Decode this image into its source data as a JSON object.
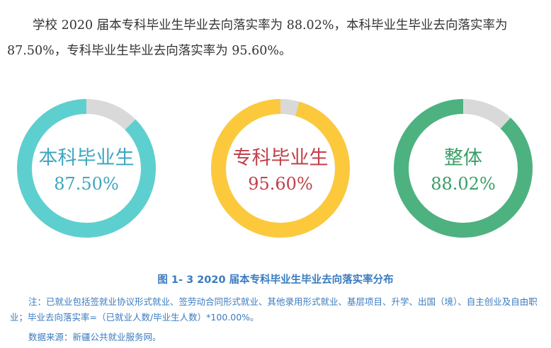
{
  "intro_text": "学校 2020 届本专科毕业生毕业去向落实率为 88.02%，本科毕业生毕业去向落实率为 87.50%，专科毕业生毕业去向落实率为 95.60%。",
  "chart_data": {
    "type": "pie",
    "title": "图 1- 3    2020 届本专科毕业生毕业去向落实率分布",
    "unit": "%",
    "series": [
      {
        "name": "本科毕业生",
        "value": 87.5,
        "value_label": "87.50%",
        "color": "#5ecfcf",
        "label_color": "#3fa6bf"
      },
      {
        "name": "专科毕业生",
        "value": 95.6,
        "value_label": "95.60%",
        "color": "#fcc93c",
        "label_color": "#c0404a"
      },
      {
        "name": "整体",
        "value": 88.02,
        "value_label": "88.02%",
        "color": "#4db27f",
        "label_color": "#3a9e66"
      }
    ],
    "remainder_color": "#d9d9d9"
  },
  "note": "注：已就业包括签就业协议形式就业、签劳动合同形式就业、其他录用形式就业、基层项目、升学、出国（境）、自主创业及自由职业；毕业去向落实率=（已就业人数/毕业生人数）*100.00%。",
  "source": "数据来源：新疆公共就业服务网。"
}
